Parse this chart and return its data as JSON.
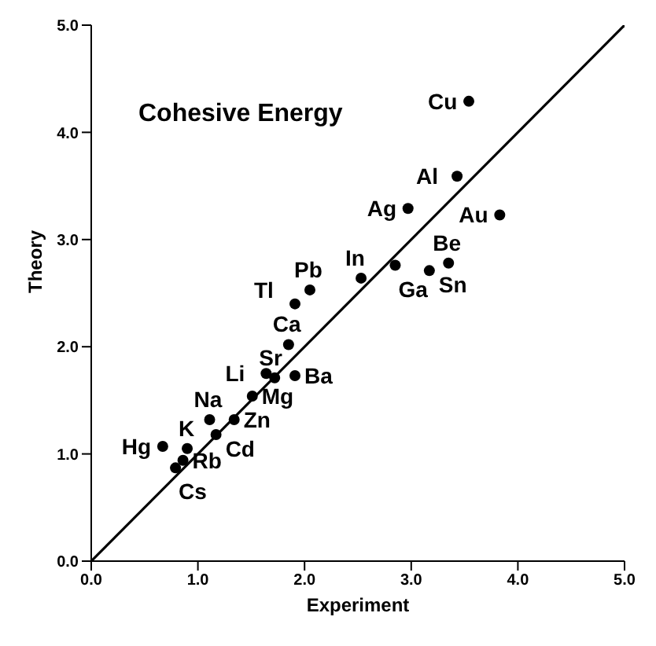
{
  "chart_data": {
    "type": "scatter",
    "title": "Cohesive Energy",
    "xlabel": "Experiment",
    "ylabel": "Theory",
    "xlim": [
      0,
      5
    ],
    "ylim": [
      0,
      5
    ],
    "xticks": [
      {
        "value": 0,
        "label": "0.0"
      },
      {
        "value": 1,
        "label": "1.0"
      },
      {
        "value": 2,
        "label": "2.0"
      },
      {
        "value": 3,
        "label": "3.0"
      },
      {
        "value": 4,
        "label": "4.0"
      },
      {
        "value": 5,
        "label": "5.0"
      }
    ],
    "yticks": [
      {
        "value": 0,
        "label": "0.0"
      },
      {
        "value": 1,
        "label": "1.0"
      },
      {
        "value": 2,
        "label": "2.0"
      },
      {
        "value": 3,
        "label": "3.0"
      },
      {
        "value": 4,
        "label": "4.0"
      },
      {
        "value": 5,
        "label": "5.0"
      }
    ],
    "grid": false,
    "legend": false,
    "marker": "circle",
    "series": [
      {
        "type": "scatter",
        "color": "#000000",
        "x": [
          0.67,
          0.9,
          0.79,
          0.86,
          1.11,
          1.17,
          1.34,
          1.51,
          1.64,
          1.72,
          1.91,
          1.85,
          1.91,
          2.05,
          2.53,
          2.85,
          3.17,
          3.35,
          2.97,
          3.54,
          3.43,
          3.83
        ],
        "values": [
          1.07,
          1.05,
          0.87,
          0.94,
          1.32,
          1.18,
          1.32,
          1.54,
          1.75,
          1.71,
          1.73,
          2.02,
          2.4,
          2.53,
          2.64,
          2.76,
          2.71,
          2.78,
          3.29,
          4.29,
          3.59,
          3.23
        ]
      },
      {
        "type": "line",
        "color": "#000000",
        "marker": "none",
        "line_style": "solid",
        "x": [
          0,
          5
        ],
        "values": [
          0,
          5
        ]
      }
    ],
    "annotations": [
      {
        "text": "Hg",
        "x": 0.67,
        "y": 1.07
      },
      {
        "text": "K",
        "x": 0.9,
        "y": 1.05
      },
      {
        "text": "Cs",
        "x": 0.79,
        "y": 0.87
      },
      {
        "text": "Rb",
        "x": 0.86,
        "y": 0.94
      },
      {
        "text": "Na",
        "x": 1.11,
        "y": 1.32
      },
      {
        "text": "Cd",
        "x": 1.17,
        "y": 1.18
      },
      {
        "text": "Zn",
        "x": 1.34,
        "y": 1.32
      },
      {
        "text": "Mg",
        "x": 1.51,
        "y": 1.54
      },
      {
        "text": "Li",
        "x": 1.64,
        "y": 1.75
      },
      {
        "text": "Sr",
        "x": 1.72,
        "y": 1.71
      },
      {
        "text": "Ba",
        "x": 1.91,
        "y": 1.73
      },
      {
        "text": "Ca",
        "x": 1.85,
        "y": 2.02
      },
      {
        "text": "Tl",
        "x": 1.91,
        "y": 2.4
      },
      {
        "text": "Pb",
        "x": 2.05,
        "y": 2.53
      },
      {
        "text": "In",
        "x": 2.53,
        "y": 2.64
      },
      {
        "text": "Ga",
        "x": 2.85,
        "y": 2.76
      },
      {
        "text": "Sn",
        "x": 3.17,
        "y": 2.71
      },
      {
        "text": "Be",
        "x": 3.35,
        "y": 2.78
      },
      {
        "text": "Ag",
        "x": 2.97,
        "y": 3.29
      },
      {
        "text": "Cu",
        "x": 3.54,
        "y": 4.29
      },
      {
        "text": "Al",
        "x": 3.43,
        "y": 3.59
      },
      {
        "text": "Au",
        "x": 3.83,
        "y": 3.23
      }
    ]
  }
}
